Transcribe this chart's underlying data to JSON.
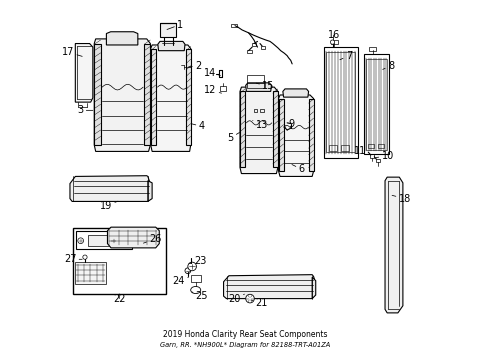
{
  "title": "2019 Honda Clarity Rear Seat Components",
  "subtitle": "Garn, RR. *NH900L* Diagram for 82188-TRT-A01ZA",
  "bg_color": "#ffffff",
  "label_fontsize": 7.0,
  "label_positions": {
    "1": [
      0.31,
      0.935,
      0.278,
      0.92
    ],
    "2": [
      0.36,
      0.82,
      0.338,
      0.816
    ],
    "3": [
      0.048,
      0.695,
      0.078,
      0.695
    ],
    "4": [
      0.37,
      0.65,
      0.348,
      0.658
    ],
    "5": [
      0.468,
      0.618,
      0.488,
      0.635
    ],
    "6": [
      0.65,
      0.53,
      0.628,
      0.545
    ],
    "7": [
      0.782,
      0.848,
      0.762,
      0.835
    ],
    "8": [
      0.9,
      0.82,
      0.882,
      0.808
    ],
    "9": [
      0.622,
      0.658,
      0.608,
      0.645
    ],
    "10": [
      0.882,
      0.568,
      0.862,
      0.562
    ],
    "11": [
      0.84,
      0.582,
      0.852,
      0.57
    ],
    "12": [
      0.42,
      0.752,
      0.438,
      0.742
    ],
    "13": [
      0.53,
      0.655,
      0.518,
      0.668
    ],
    "14": [
      0.418,
      0.8,
      0.435,
      0.792
    ],
    "15": [
      0.548,
      0.762,
      0.528,
      0.772
    ],
    "16": [
      0.748,
      0.905,
      0.748,
      0.888
    ],
    "17": [
      0.022,
      0.858,
      0.048,
      0.845
    ],
    "18": [
      0.93,
      0.448,
      0.908,
      0.458
    ],
    "19": [
      0.128,
      0.428,
      0.148,
      0.442
    ],
    "20": [
      0.488,
      0.168,
      0.502,
      0.182
    ],
    "21": [
      0.53,
      0.155,
      0.514,
      0.165
    ],
    "22": [
      0.148,
      0.168,
      0.148,
      0.185
    ],
    "23": [
      0.358,
      0.272,
      0.34,
      0.265
    ],
    "24": [
      0.332,
      0.218,
      0.342,
      0.228
    ],
    "25": [
      0.362,
      0.175,
      0.348,
      0.188
    ],
    "26": [
      0.232,
      0.335,
      0.212,
      0.322
    ],
    "27": [
      0.028,
      0.278,
      0.048,
      0.278
    ]
  }
}
